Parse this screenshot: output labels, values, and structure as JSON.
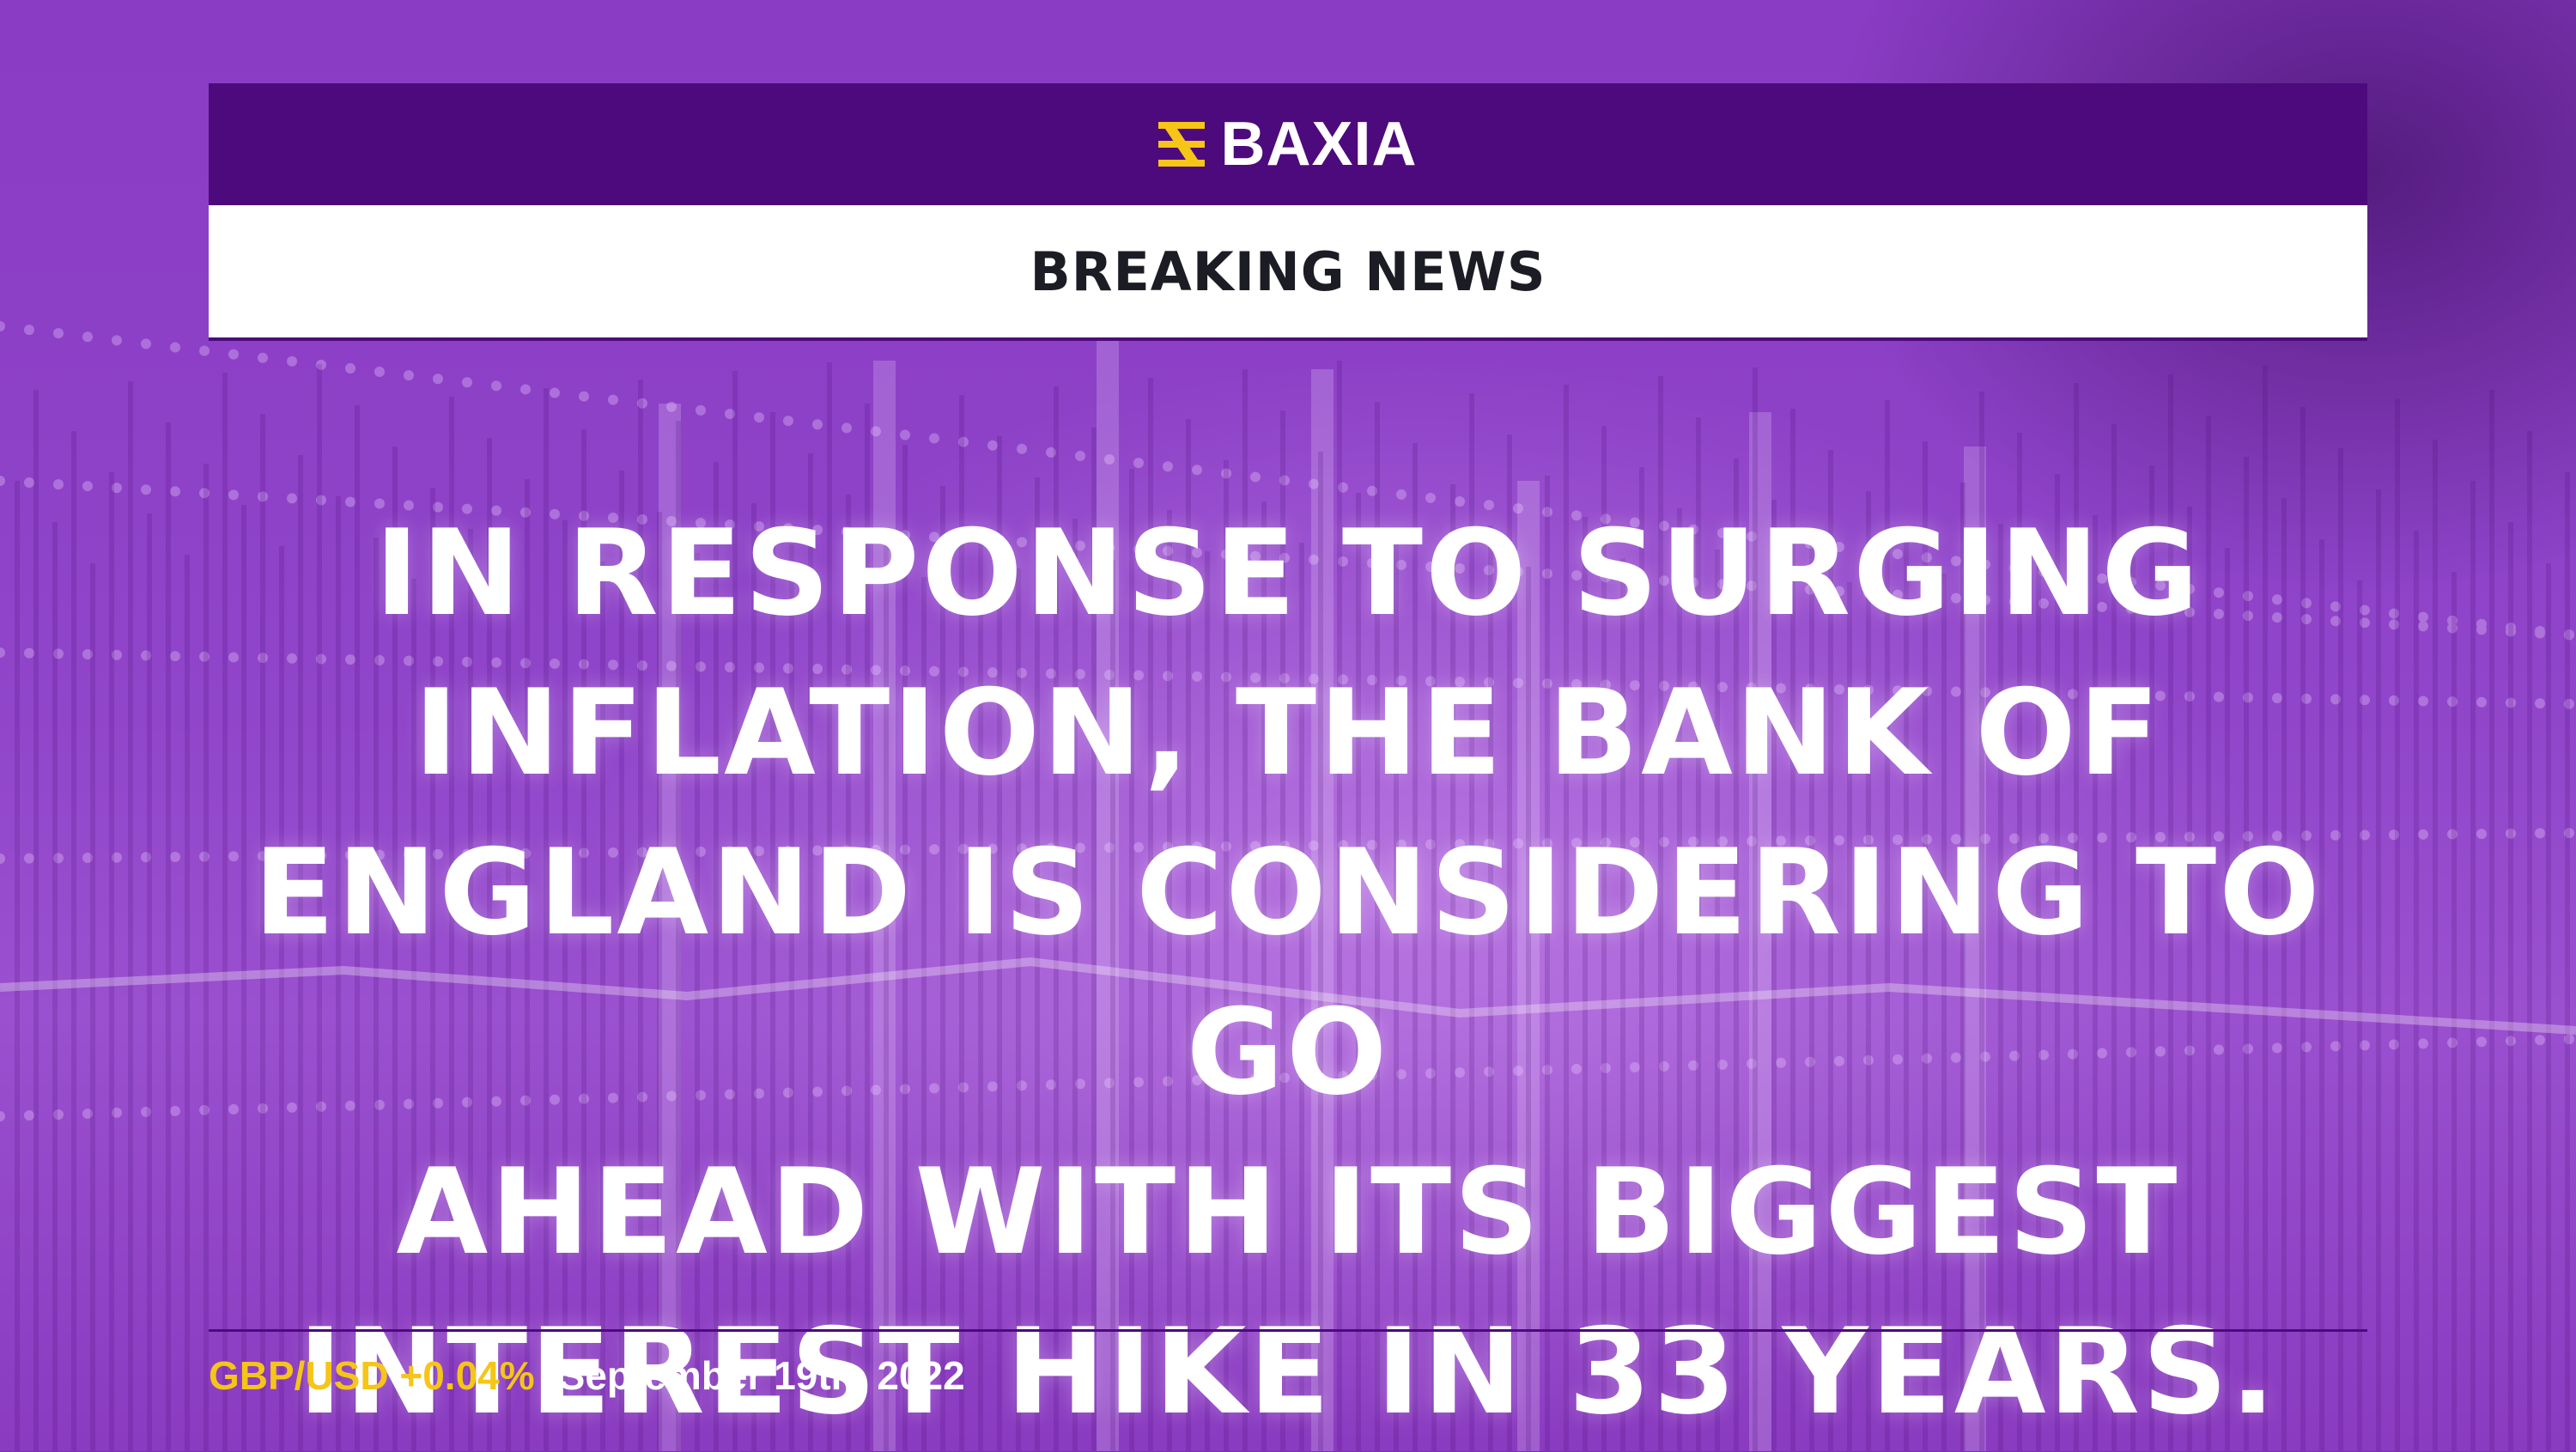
{
  "brand": {
    "name": "BAXIA",
    "logo_icon": "baxia-logo-icon",
    "accent_color": "#f5c518",
    "header_color": "#4d0a7c"
  },
  "banner": {
    "label": "BREAKING NEWS"
  },
  "headline": {
    "lines": [
      "IN RESPONSE TO SURGING",
      "INFLATION, THE BANK OF",
      "ENGLAND IS CONSIDERING TO GO",
      "AHEAD WITH ITS BIGGEST",
      "INTEREST HIKE IN 33 YEARS."
    ]
  },
  "footer": {
    "ticker": "GBP/USD +0.04%",
    "date": "September 19th, 2022"
  },
  "background": {
    "description_icon": "stock-chart-background"
  }
}
